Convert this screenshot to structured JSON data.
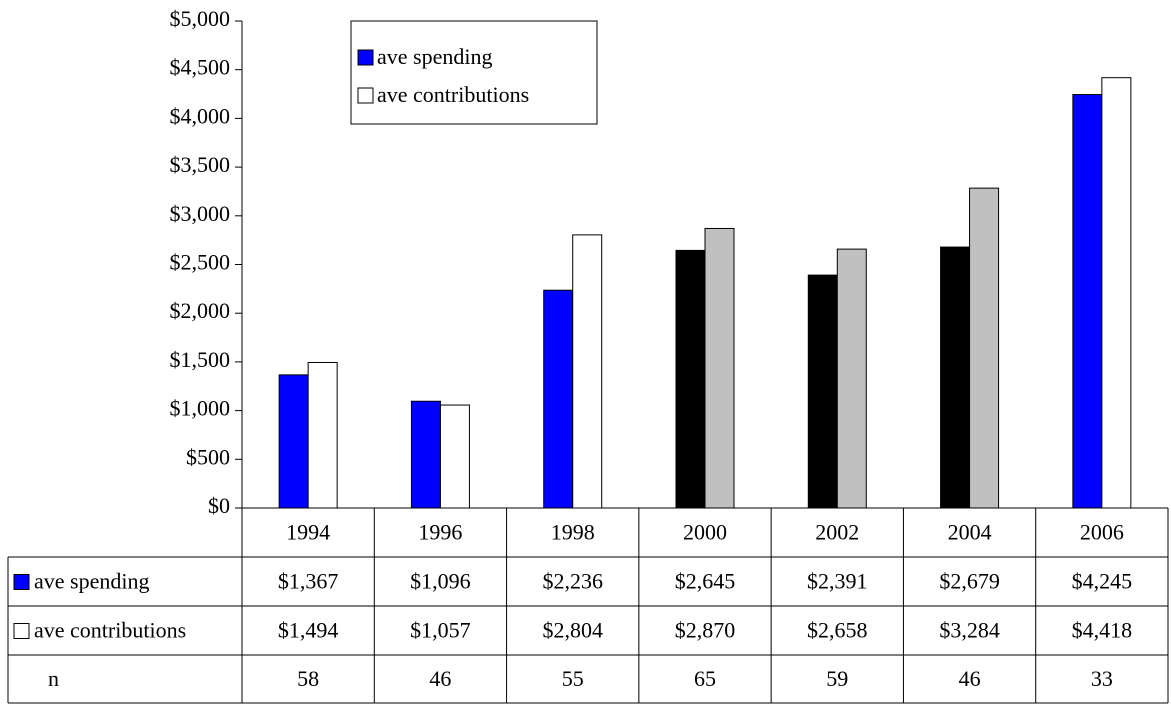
{
  "chart_data": {
    "type": "bar",
    "categories": [
      "1994",
      "1996",
      "1998",
      "2000",
      "2002",
      "2004",
      "2006"
    ],
    "series": [
      {
        "name": "ave spending",
        "color": "#0000ff",
        "colors": [
          "#0000ff",
          "#0000ff",
          "#0000ff",
          "#000000",
          "#000000",
          "#000000",
          "#0000ff"
        ],
        "values": [
          1367,
          1096,
          2236,
          2645,
          2391,
          2679,
          4245
        ],
        "value_labels": [
          "$1,367",
          "$1,096",
          "$2,236",
          "$2,645",
          "$2,391",
          "$2,679",
          "$4,245"
        ]
      },
      {
        "name": "ave contributions",
        "color": "#ffffff",
        "colors": [
          "#ffffff",
          "#ffffff",
          "#ffffff",
          "#c0c0c0",
          "#c0c0c0",
          "#c0c0c0",
          "#ffffff"
        ],
        "values": [
          1494,
          1057,
          2804,
          2870,
          2658,
          3284,
          4418
        ],
        "value_labels": [
          "$1,494",
          "$1,057",
          "$2,804",
          "$2,870",
          "$2,658",
          "$3,284",
          "$4,418"
        ]
      }
    ],
    "sample_size": {
      "label": "n",
      "values": [
        58,
        46,
        55,
        65,
        59,
        46,
        33
      ]
    },
    "ylim": [
      0,
      5000
    ],
    "yticks": [
      {
        "value": 0,
        "label": "$0"
      },
      {
        "value": 500,
        "label": "$500"
      },
      {
        "value": 1000,
        "label": "$1,000"
      },
      {
        "value": 1500,
        "label": "$1,500"
      },
      {
        "value": 2000,
        "label": "$2,000"
      },
      {
        "value": 2500,
        "label": "$2,500"
      },
      {
        "value": 3000,
        "label": "$3,000"
      },
      {
        "value": 3500,
        "label": "$3,500"
      },
      {
        "value": 4000,
        "label": "$4,000"
      },
      {
        "value": 4500,
        "label": "$4,500"
      },
      {
        "value": 5000,
        "label": "$5,000"
      }
    ],
    "legend": "upper left",
    "grid": false
  }
}
